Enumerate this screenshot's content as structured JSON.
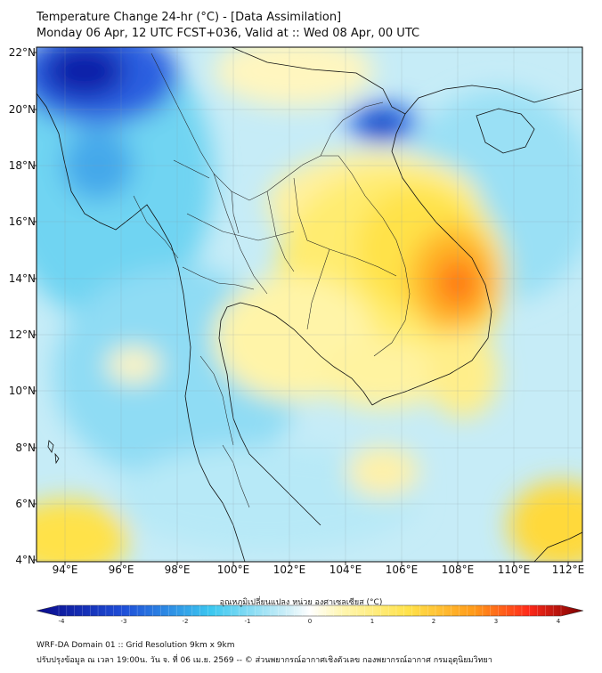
{
  "header": {
    "title_line1": "Temperature Change 24-hr (°C) - [Data Assimilation]",
    "title_line2": "Monday 06 Apr, 12 UTC FCST+036, Valid at :: Wed 08 Apr, 00 UTC"
  },
  "map": {
    "lat_labels": [
      "22°N",
      "20°N",
      "18°N",
      "16°N",
      "14°N",
      "12°N",
      "10°N",
      "8°N",
      "6°N",
      "4°N"
    ],
    "lon_labels": [
      "94°E",
      "96°E",
      "98°E",
      "100°E",
      "102°E",
      "104°E",
      "106°E",
      "108°E",
      "110°E",
      "112°E"
    ],
    "region": {
      "lon_min": 93,
      "lon_max": 112.5,
      "lat_min": 4,
      "lat_max": 22.3
    },
    "features": [
      {
        "name": "cold-core",
        "lon": 95.2,
        "lat": 21.7,
        "delta_c": -3.6
      },
      {
        "name": "cold-gulf-tonkin",
        "lon": 105.5,
        "lat": 19.5,
        "delta_c": -3.0
      },
      {
        "name": "cool-myanmar-north",
        "lon": 96.0,
        "lat": 18.0,
        "delta_c": -2.0
      },
      {
        "name": "warm-lao-vietnam",
        "lon": 106.5,
        "lat": 15.5,
        "delta_c": 1.6
      },
      {
        "name": "warm-core-central-highlands",
        "lon": 107.8,
        "lat": 13.9,
        "delta_c": 2.6
      },
      {
        "name": "warm-cambodia",
        "lon": 104.5,
        "lat": 12.5,
        "delta_c": 1.2
      },
      {
        "name": "warm-south-china-sea",
        "lon": 111.5,
        "lat": 5.5,
        "delta_c": 1.6
      },
      {
        "name": "warm-andaman-sw",
        "lon": 94.0,
        "lat": 4.5,
        "delta_c": 1.8
      }
    ]
  },
  "colorbar": {
    "title": "อุณหภูมิเปลี่ยนแปลง หน่วย องศาเซลเซียส (°C)",
    "ticks": [
      "-4",
      "-3",
      "-2",
      "-1",
      "0",
      "1",
      "2",
      "3",
      "4"
    ],
    "colors": {
      "min": "#0a0a8c",
      "cold": "#1f4fd8",
      "cool": "#3cc8f0",
      "neutral": "#ffffff",
      "warm": "#ffe24a",
      "hot": "#ff6a00",
      "max": "#7a0000"
    }
  },
  "footer": {
    "line1": "WRF-DA Domain 01 :: Grid Resolution 9km x 9km",
    "line2": "ปรับปรุงข้อมูล ณ เวลา 19:00น. วัน จ. ที่ 06 เม.ย. 2569 -- © ส่วนพยากรณ์อากาศเชิงตัวเลข กองพยากรณ์อากาศ กรมอุตุนิยมวิทยา"
  }
}
